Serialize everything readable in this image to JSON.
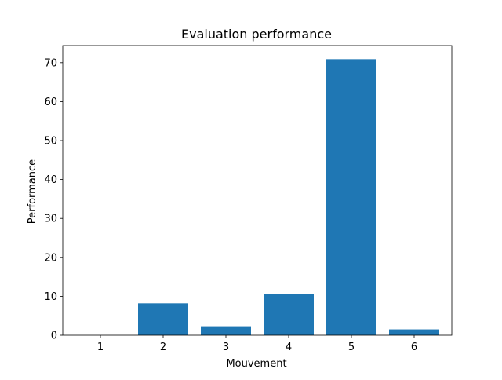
{
  "chart_data": {
    "type": "bar",
    "title": "Evaluation performance",
    "xlabel": "Mouvement",
    "ylabel": "Performance",
    "categories": [
      "1",
      "2",
      "3",
      "4",
      "5",
      "6"
    ],
    "x": [
      1,
      2,
      3,
      4,
      5,
      6
    ],
    "values": [
      0,
      8.2,
      2.3,
      10.5,
      70.9,
      1.5
    ],
    "xlim": [
      0.4,
      6.6
    ],
    "ylim": [
      0,
      74.4
    ],
    "yticks": [
      0,
      10,
      20,
      30,
      40,
      50,
      60,
      70
    ],
    "ytick_labels": [
      "0",
      "10",
      "20",
      "30",
      "40",
      "50",
      "60",
      "70"
    ],
    "bar_color": "#1f77b4",
    "grid": false,
    "legend": false
  }
}
